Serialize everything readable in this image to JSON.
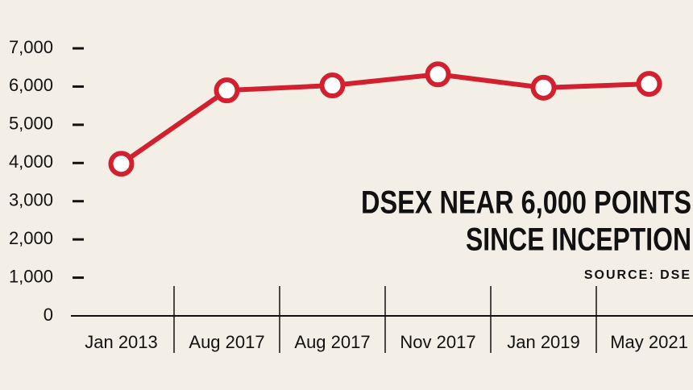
{
  "chart_data": {
    "type": "line",
    "title_lines": [
      "DSEX NEAR 6,000 POINTS",
      "SINCE INCEPTION"
    ],
    "source": "SOURCE: DSE",
    "categories": [
      "Jan 2013",
      "Aug 2017",
      "Aug 2017",
      "Nov 2017",
      "Jan 2019",
      "May 2021"
    ],
    "values": [
      3980,
      5900,
      6030,
      6320,
      5970,
      6070
    ],
    "color": "#d3202f",
    "ylim": [
      0,
      7000
    ],
    "yticks": [
      0,
      {
        "value": 1000,
        "label": "1,000"
      },
      {
        "value": 2000,
        "label": "2,000"
      },
      {
        "value": 3000,
        "label": "3,000"
      },
      {
        "value": 4000,
        "label": "4,000"
      },
      {
        "value": 5000,
        "label": "5,000"
      },
      {
        "value": 6000,
        "label": "6,000"
      },
      {
        "value": 7000,
        "label": "7,000"
      }
    ]
  }
}
